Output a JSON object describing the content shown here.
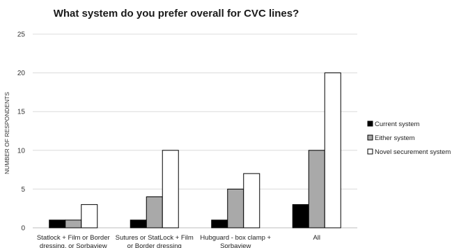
{
  "chart_data": {
    "type": "bar",
    "title": "What system do you prefer overall for CVC lines?",
    "xlabel": "",
    "ylabel": "NUMBER OF RESPONDENTS",
    "ylim": [
      0,
      25
    ],
    "yticks": [
      0,
      5,
      10,
      15,
      20,
      25
    ],
    "grid": true,
    "legend_position": "right",
    "categories": [
      [
        "Statlock + Film or Border",
        "dressing, or Sorbaview"
      ],
      [
        "Sutures or StatLock + Film",
        "or Border dressing"
      ],
      [
        "Hubguard - box clamp +",
        "Sorbaview"
      ],
      [
        "All"
      ]
    ],
    "series": [
      {
        "name": "Current system",
        "values": [
          1,
          1,
          1,
          3
        ],
        "color": "#000000"
      },
      {
        "name": "Either system",
        "values": [
          1,
          4,
          5,
          10
        ],
        "color": "#a9a9a9"
      },
      {
        "name": "Novel securement system",
        "values": [
          3,
          10,
          7,
          20
        ],
        "color": "#ffffff"
      }
    ]
  }
}
